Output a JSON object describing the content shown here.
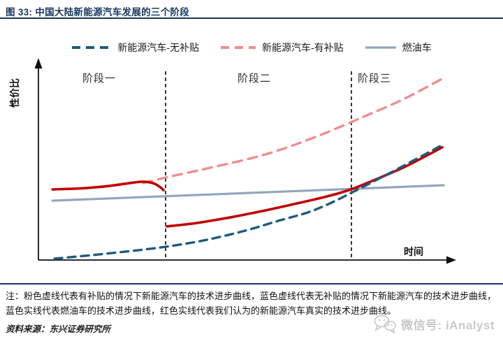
{
  "header": {
    "title": "图 33: 中国大陆新能源汽车发展的三个阶段"
  },
  "chart_data": {
    "type": "line",
    "title": "中国大陆新能源汽车发展的三个阶段",
    "xlabel": "时间",
    "ylabel": "性价比",
    "x_range_note": [
      0,
      100
    ],
    "y_range_note": [
      0,
      100
    ],
    "grid": false,
    "legend_position": "top-center",
    "stages": [
      {
        "label": "阶段一"
      },
      {
        "label": "阶段二"
      },
      {
        "label": "阶段三"
      }
    ],
    "stage_boundaries_x": [
      30.6,
      75.3
    ],
    "legend": [
      {
        "name": "新能源汽车-无补贴",
        "color": "#1C5C7C",
        "style": "dashed"
      },
      {
        "name": "新能源汽车-有补贴",
        "color": "#F28C8C",
        "style": "dashed"
      },
      {
        "name": "燃油车",
        "color": "#93A6BE",
        "style": "solid"
      }
    ],
    "series": [
      {
        "key": "nev-with-subsidy",
        "name": "新能源汽车-有补贴",
        "color": "#F28C8C",
        "style": "dashed",
        "width": 3.4,
        "dash": "13 9",
        "points": [
          [
            25.2,
            38.9
          ],
          [
            30.6,
            41.7
          ],
          [
            41,
            46.5
          ],
          [
            54.6,
            53.4
          ],
          [
            66.4,
            62
          ],
          [
            78.2,
            72.4
          ],
          [
            88,
            81.5
          ],
          [
            97,
            91.5
          ]
        ]
      },
      {
        "key": "fuel-vehicle",
        "name": "燃油车",
        "color": "#93A6BE",
        "style": "solid",
        "width": 3.2,
        "dash": "",
        "points": [
          [
            3.4,
            30
          ],
          [
            97.5,
            37.8
          ]
        ]
      },
      {
        "key": "real-curve-stage1",
        "name": "红色实线-真实技术进步曲线(阶段一)",
        "color": "#C00000",
        "style": "solid",
        "width": 3.6,
        "dash": "",
        "points": [
          [
            3.4,
            35.7
          ],
          [
            10,
            36.2
          ],
          [
            16,
            37.2
          ],
          [
            21,
            38.6
          ],
          [
            24.9,
            39.6
          ],
          [
            27.5,
            38.9
          ],
          [
            29.2,
            37
          ],
          [
            30.1,
            35.3
          ]
        ]
      },
      {
        "key": "real-curve-stage23",
        "name": "红色实线-真实技术进步曲线(阶段二/三)",
        "color": "#C00000",
        "style": "solid",
        "width": 3.6,
        "dash": "",
        "points": [
          [
            30.9,
            17
          ],
          [
            38,
            18.7
          ],
          [
            46,
            21.5
          ],
          [
            54,
            24.8
          ],
          [
            62,
            28.5
          ],
          [
            68,
            31.4
          ],
          [
            72,
            33.6
          ],
          [
            75.6,
            36
          ],
          [
            82,
            41.5
          ],
          [
            89,
            48
          ],
          [
            97.2,
            57
          ]
        ]
      },
      {
        "key": "nev-no-subsidy",
        "name": "新能源汽车-无补贴",
        "color": "#1C5C7C",
        "style": "dashed",
        "width": 3.4,
        "dash": "11 8",
        "points": [
          [
            3.9,
            0.7
          ],
          [
            13,
            2.5
          ],
          [
            22,
            4.5
          ],
          [
            30.6,
            6.7
          ],
          [
            40,
            10
          ],
          [
            50,
            15
          ],
          [
            58,
            20
          ],
          [
            64.7,
            24
          ],
          [
            70,
            28.5
          ],
          [
            75.6,
            34.3
          ],
          [
            85,
            44.5
          ],
          [
            97.5,
            58.5
          ]
        ]
      }
    ]
  },
  "stage_labels": {
    "s1": "阶段一",
    "s2": "阶段二",
    "s3": "阶段三"
  },
  "axes": {
    "x_label": "时间",
    "y_label": "性价比"
  },
  "footer": {
    "note_line1": "注：粉色虚线代表有补贴的情况下新能源汽车的技术进步曲线，蓝色虚线代表无补贴的情况下新能源汽车的技术进步曲线，",
    "note_line2": "蓝色实线代表燃油车的技术进步曲线，红色实线代表我们认为的新能源汽车真实的技术进步曲线。",
    "source": "资料来源：东兴证券研究所"
  },
  "watermark": {
    "text": "微信号: iAnalyst"
  },
  "colors": {
    "accent_navy": "#17375E",
    "red": "#C00000",
    "pink": "#F28C8C",
    "dark_teal": "#1C5C7C",
    "gray_blue": "#93A6BE"
  }
}
